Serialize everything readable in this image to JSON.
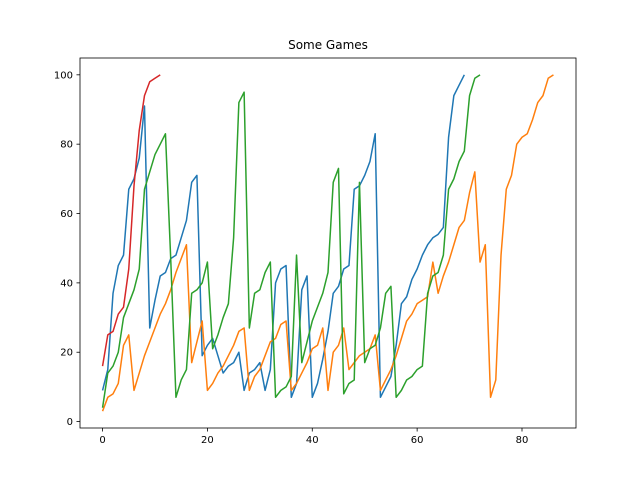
{
  "chart_data": {
    "type": "line",
    "title": "Some Games",
    "xlabel": "",
    "ylabel": "",
    "xlim": [
      -4.3,
      90.3
    ],
    "ylim": [
      -1.85,
      104.85
    ],
    "xticks": [
      0,
      20,
      40,
      60,
      80
    ],
    "yticks": [
      0,
      20,
      40,
      60,
      80,
      100
    ],
    "grid": false,
    "legend": "none",
    "series": [
      {
        "color": "#1f77b4",
        "y": [
          9,
          15,
          37,
          45,
          48,
          67,
          70,
          76,
          91,
          27,
          35,
          42,
          43,
          47,
          48,
          53,
          58,
          69,
          71,
          19,
          22,
          24,
          19,
          14,
          16,
          17,
          20,
          9,
          14,
          15,
          17,
          9,
          15,
          40,
          44,
          45,
          7,
          11,
          38,
          42,
          7,
          11,
          18,
          26,
          37,
          39,
          44,
          45,
          67,
          68,
          71,
          75,
          83,
          7,
          10,
          13,
          22,
          34,
          36,
          41,
          44,
          48,
          51,
          53,
          54,
          56,
          82,
          94,
          97,
          100
        ]
      },
      {
        "color": "#ff7f0e",
        "y": [
          3,
          7,
          8,
          11,
          22,
          25,
          9,
          14,
          19,
          23,
          27,
          31,
          34,
          38,
          43,
          47,
          51,
          17,
          23,
          29,
          9,
          11,
          14,
          16,
          19,
          22,
          26,
          27,
          9,
          13,
          15,
          19,
          23,
          24,
          28,
          29,
          9,
          11,
          14,
          17,
          21,
          22,
          27,
          9,
          20,
          22,
          27,
          15,
          17,
          19,
          20,
          21,
          25,
          9,
          12,
          15,
          19,
          24,
          29,
          31,
          34,
          35,
          36,
          46,
          37,
          42,
          46,
          51,
          56,
          58,
          66,
          72,
          46,
          51,
          7,
          12,
          48,
          67,
          71,
          80,
          82,
          83,
          87,
          92,
          94,
          99,
          100
        ]
      },
      {
        "color": "#2ca02c",
        "y": [
          4,
          14,
          16,
          20,
          30,
          34,
          38,
          44,
          67,
          72,
          77,
          80,
          83,
          47,
          7,
          12,
          15,
          37,
          38,
          40,
          46,
          21,
          25,
          30,
          34,
          53,
          92,
          95,
          27,
          37,
          38,
          43,
          46,
          7,
          9,
          10,
          13,
          48,
          17,
          23,
          29,
          33,
          37,
          43,
          69,
          73,
          8,
          11,
          12,
          69,
          17,
          21,
          22,
          27,
          37,
          39,
          7,
          9,
          12,
          13,
          15,
          16,
          37,
          42,
          43,
          48,
          67,
          70,
          75,
          78,
          94,
          99,
          100
        ]
      },
      {
        "color": "#d62728",
        "y": [
          16,
          25,
          26,
          31,
          33,
          44,
          68,
          84,
          94,
          98,
          99,
          100
        ]
      }
    ]
  }
}
